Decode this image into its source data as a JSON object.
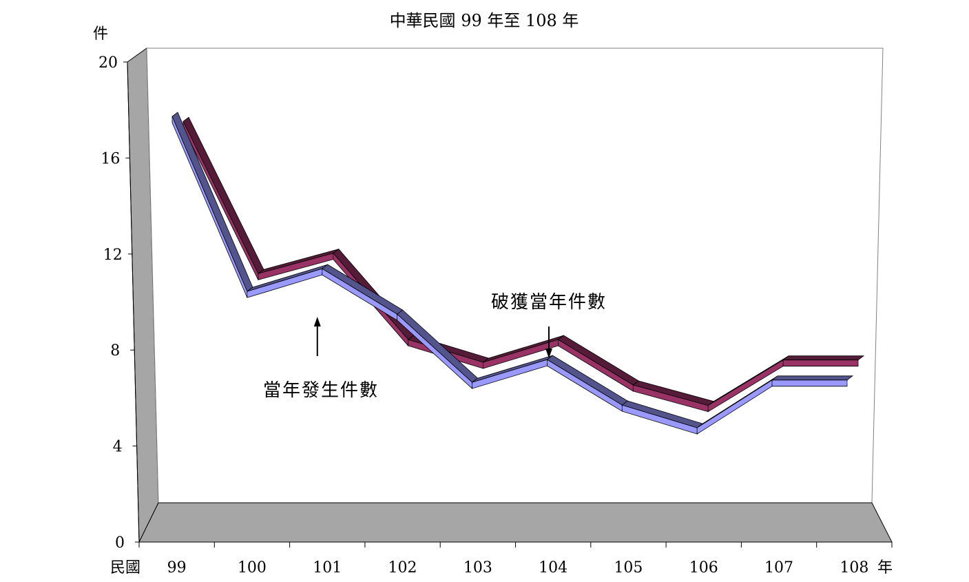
{
  "chart_data": {
    "type": "line",
    "title": "中華民國 99 年至 108 年",
    "ylabel": "件",
    "xlabel_prefix": "民國",
    "xlabel_suffix": "年",
    "categories": [
      "99",
      "100",
      "101",
      "102",
      "103",
      "104",
      "105",
      "106",
      "107",
      "108"
    ],
    "ylim": [
      0,
      20
    ],
    "yticks": [
      "0",
      "4",
      "8",
      "12",
      "16",
      "20"
    ],
    "grid": false,
    "series": [
      {
        "name": "當年發生件數",
        "values": [
          17.0,
          9.3,
          10.3,
          8.3,
          5.3,
          6.3,
          4.3,
          3.3,
          5.4,
          5.4
        ],
        "color": "#9999ff"
      },
      {
        "name": "破獲當年件數",
        "values": [
          16.6,
          9.9,
          10.8,
          7.0,
          6.0,
          7.0,
          5.0,
          4.1,
          6.1,
          6.1
        ],
        "color": "#993366"
      }
    ],
    "annotations": [
      {
        "text": "當年發生件數",
        "arrow": "up",
        "series_index": 0
      },
      {
        "text": "破獲當年件數",
        "arrow": "down",
        "series_index": 1
      }
    ]
  }
}
